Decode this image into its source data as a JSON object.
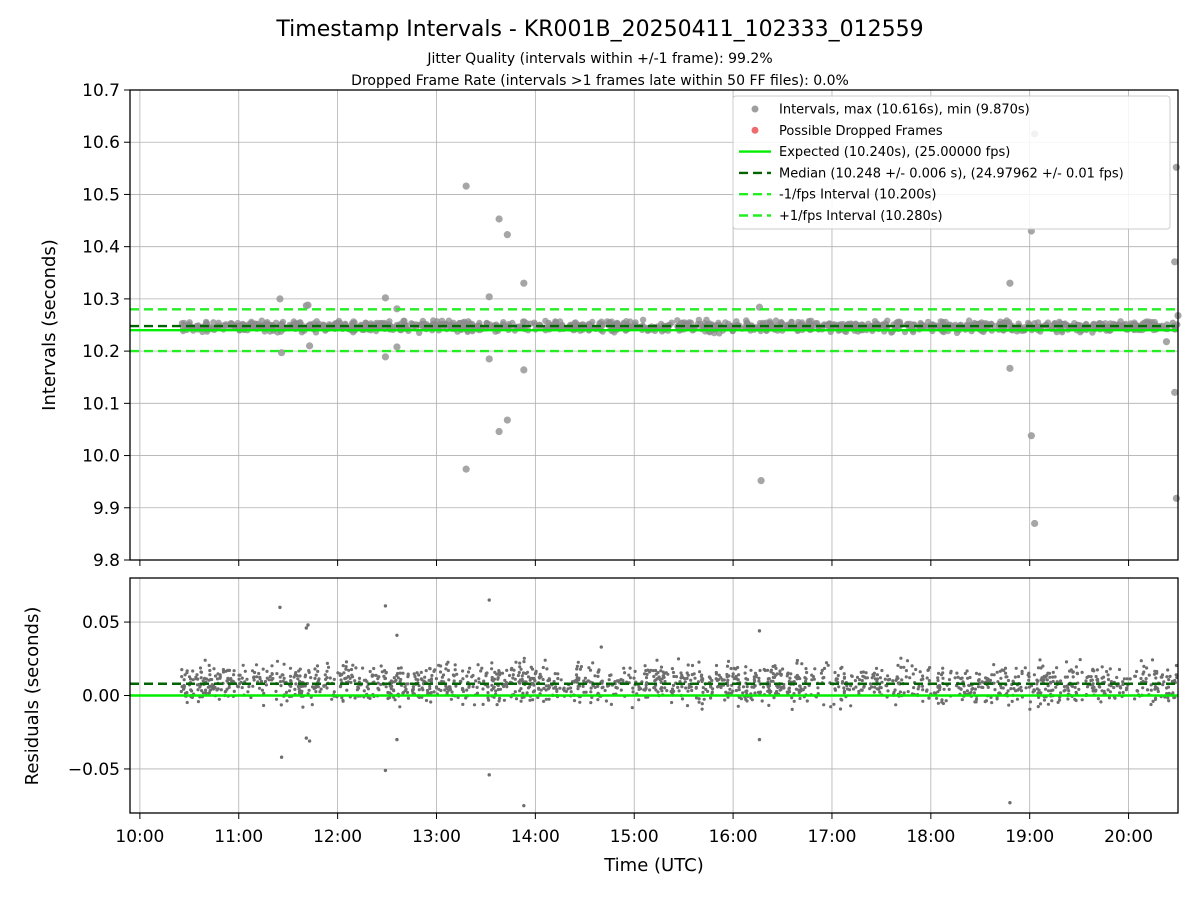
{
  "chart_data": [
    {
      "type": "scatter",
      "panel": "intervals",
      "title": "Timestamp Intervals - KR001B_20250411_102333_012559",
      "subtitle_lines": [
        "Jitter Quality (intervals within +/-1 frame): 99.2%",
        "Dropped Frame Rate (intervals >1 frames late within 50 FF files): 0.0%"
      ],
      "ylabel": "Intervals (seconds)",
      "xlabel": "",
      "xlim": [
        "10:00",
        "20:30"
      ],
      "ylim": [
        9.8,
        10.7
      ],
      "yticks": [
        "9.8",
        "9.9",
        "10.0",
        "10.1",
        "10.2",
        "10.3",
        "10.4",
        "10.5",
        "10.6",
        "10.7"
      ],
      "grid": true,
      "legend_position": "top-right",
      "legend": [
        {
          "label": "Intervals, max (10.616s), min (9.870s)",
          "kind": "marker",
          "color": "#9e9e9e"
        },
        {
          "label": "Possible Dropped Frames",
          "kind": "marker",
          "color": "#ee6b6e"
        },
        {
          "label": "Expected (10.240s), (25.00000 fps)",
          "kind": "line",
          "color": "#00ee00",
          "dash": "solid"
        },
        {
          "label": "Median (10.248 +/- 0.006 s), (24.97962 +/- 0.01 fps)",
          "kind": "line",
          "color": "#006400",
          "dash": "dashed"
        },
        {
          "label": "-1/fps Interval (10.200s)",
          "kind": "line",
          "color": "#22ee22",
          "dash": "dashed"
        },
        {
          "label": "+1/fps Interval (10.280s)",
          "kind": "line",
          "color": "#22ee22",
          "dash": "dashed"
        }
      ],
      "reference_lines": [
        {
          "name": "Expected",
          "value": 10.24,
          "color": "#00ee00",
          "dash": "solid"
        },
        {
          "name": "Median",
          "value": 10.248,
          "color": "#006400",
          "dash": "dashed"
        },
        {
          "name": "-1/fps Interval",
          "value": 10.2,
          "color": "#22ee22",
          "dash": "dashed"
        },
        {
          "name": "+1/fps Interval",
          "value": 10.28,
          "color": "#22ee22",
          "dash": "dashed"
        }
      ],
      "dense_band": {
        "x_start": "10:25",
        "x_end": "20:30",
        "y_min": 10.232,
        "y_max": 10.262
      },
      "outliers": [
        {
          "x": "11:25",
          "y": 10.3
        },
        {
          "x": "11:26",
          "y": 10.197
        },
        {
          "x": "11:41",
          "y": 10.287
        },
        {
          "x": "11:42",
          "y": 10.288
        },
        {
          "x": "11:43",
          "y": 10.21
        },
        {
          "x": "12:29",
          "y": 10.302
        },
        {
          "x": "12:29",
          "y": 10.189
        },
        {
          "x": "12:36",
          "y": 10.281
        },
        {
          "x": "12:36",
          "y": 10.208
        },
        {
          "x": "13:18",
          "y": 10.516
        },
        {
          "x": "13:18",
          "y": 9.974
        },
        {
          "x": "13:32",
          "y": 10.304
        },
        {
          "x": "13:32",
          "y": 10.185
        },
        {
          "x": "13:38",
          "y": 10.453
        },
        {
          "x": "13:38",
          "y": 10.046
        },
        {
          "x": "13:43",
          "y": 10.423
        },
        {
          "x": "13:43",
          "y": 10.068
        },
        {
          "x": "13:53",
          "y": 10.33
        },
        {
          "x": "13:53",
          "y": 10.164
        },
        {
          "x": "16:16",
          "y": 10.284
        },
        {
          "x": "16:17",
          "y": 9.952
        },
        {
          "x": "18:48",
          "y": 10.33
        },
        {
          "x": "18:48",
          "y": 10.167
        },
        {
          "x": "19:01",
          "y": 10.43
        },
        {
          "x": "19:01",
          "y": 10.038
        },
        {
          "x": "19:03",
          "y": 10.616
        },
        {
          "x": "19:03",
          "y": 9.87
        },
        {
          "x": "20:23",
          "y": 10.218
        },
        {
          "x": "20:28",
          "y": 10.371
        },
        {
          "x": "20:28",
          "y": 10.121
        },
        {
          "x": "20:29",
          "y": 10.552
        },
        {
          "x": "20:29",
          "y": 9.918
        },
        {
          "x": "20:30",
          "y": 10.268
        }
      ]
    },
    {
      "type": "scatter",
      "panel": "residuals",
      "title": "",
      "ylabel": "Residuals (seconds)",
      "xlabel": "Time (UTC)",
      "xlim": [
        "10:00",
        "20:30"
      ],
      "ylim": [
        -0.08,
        0.08
      ],
      "yticks": [
        "−0.05",
        "0.00",
        "0.05"
      ],
      "xticks": [
        "10:00",
        "11:00",
        "12:00",
        "13:00",
        "14:00",
        "15:00",
        "16:00",
        "17:00",
        "18:00",
        "19:00",
        "20:00"
      ],
      "grid": true,
      "reference_lines": [
        {
          "name": "Expected",
          "value": 0.0,
          "color": "#00ee00",
          "dash": "solid"
        },
        {
          "name": "Median",
          "value": 0.008,
          "color": "#006400",
          "dash": "dashed"
        }
      ],
      "dense_band": {
        "x_start": "10:25",
        "x_end": "20:30",
        "y_min": -0.012,
        "y_max": 0.028
      },
      "outliers": [
        {
          "x": "11:25",
          "y": 0.06
        },
        {
          "x": "11:26",
          "y": -0.042
        },
        {
          "x": "11:41",
          "y": 0.046
        },
        {
          "x": "11:42",
          "y": 0.048
        },
        {
          "x": "11:41",
          "y": -0.029
        },
        {
          "x": "11:43",
          "y": -0.031
        },
        {
          "x": "12:29",
          "y": 0.061
        },
        {
          "x": "12:29",
          "y": -0.051
        },
        {
          "x": "12:36",
          "y": 0.041
        },
        {
          "x": "12:36",
          "y": -0.03
        },
        {
          "x": "13:32",
          "y": 0.065
        },
        {
          "x": "13:32",
          "y": -0.054
        },
        {
          "x": "13:53",
          "y": -0.075
        },
        {
          "x": "16:16",
          "y": 0.044
        },
        {
          "x": "16:16",
          "y": -0.03
        },
        {
          "x": "18:48",
          "y": -0.073
        },
        {
          "x": "14:40",
          "y": 0.033
        }
      ]
    }
  ]
}
